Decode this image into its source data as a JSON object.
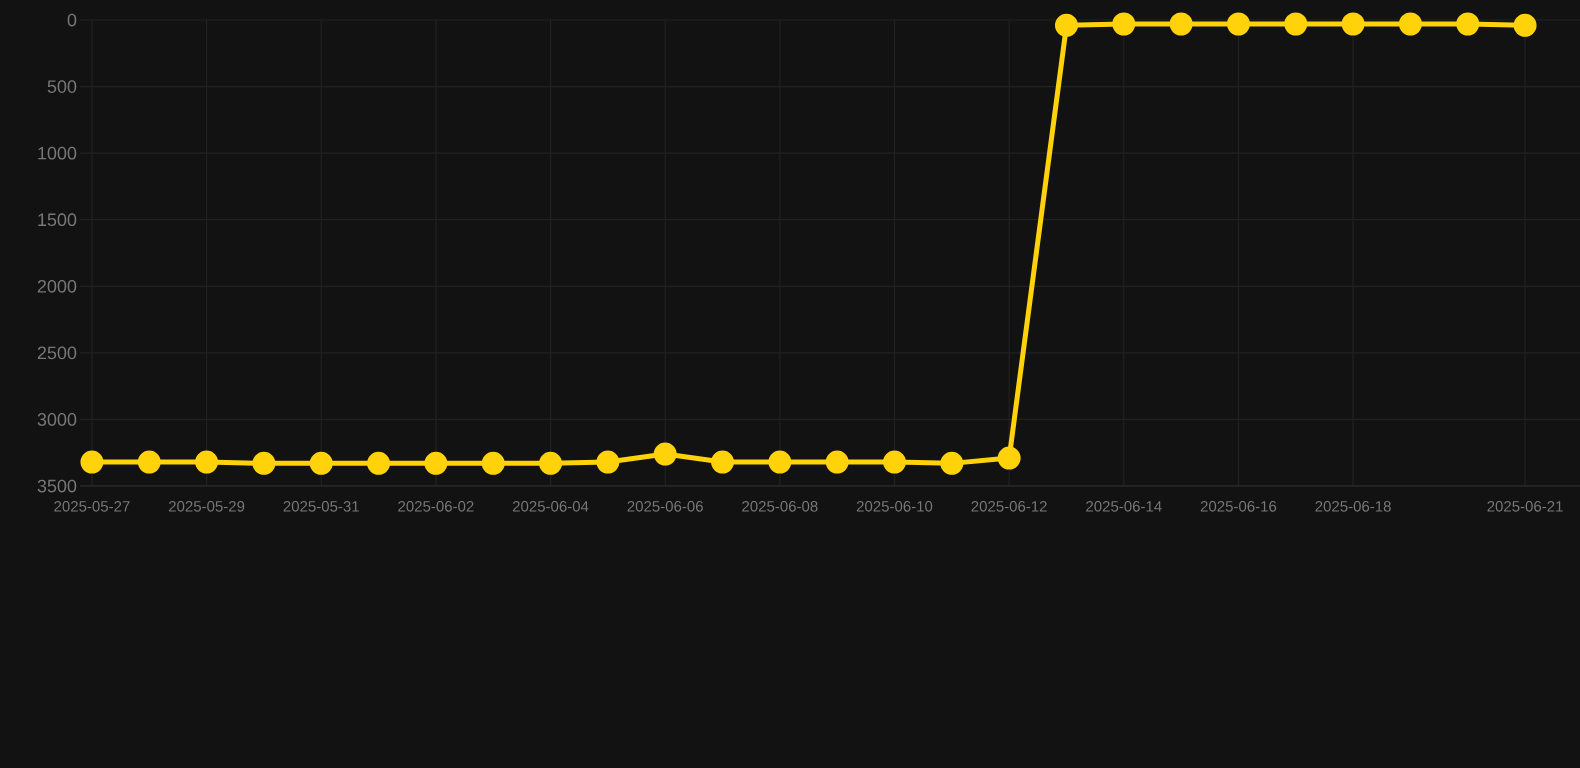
{
  "chart_data": {
    "type": "line",
    "x": [
      "2025-05-27",
      "2025-05-28",
      "2025-05-29",
      "2025-05-30",
      "2025-05-31",
      "2025-06-01",
      "2025-06-02",
      "2025-06-03",
      "2025-06-04",
      "2025-06-05",
      "2025-06-06",
      "2025-06-07",
      "2025-06-08",
      "2025-06-09",
      "2025-06-10",
      "2025-06-11",
      "2025-06-12",
      "2025-06-13",
      "2025-06-14",
      "2025-06-15",
      "2025-06-16",
      "2025-06-17",
      "2025-06-18",
      "2025-06-19",
      "2025-06-20",
      "2025-06-21"
    ],
    "series": [
      {
        "color": "#ffd20a",
        "values": [
          3320,
          3320,
          3320,
          3330,
          3330,
          3330,
          3330,
          3330,
          3330,
          3320,
          3260,
          3320,
          3320,
          3320,
          3320,
          3330,
          3290,
          40,
          30,
          30,
          30,
          30,
          30,
          30,
          30,
          40
        ]
      }
    ],
    "xlim": [
      "2025-05-26T19:00",
      "2025-06-21T23:00"
    ],
    "xticks": [
      "2025-05-27",
      "2025-05-29",
      "2025-05-31",
      "2025-06-02",
      "2025-06-04",
      "2025-06-06",
      "2025-06-08",
      "2025-06-10",
      "2025-06-12",
      "2025-06-14",
      "2025-06-16",
      "2025-06-18",
      "2025-06-21"
    ],
    "ylim": [
      3500,
      0
    ],
    "yticks": [
      0,
      500,
      1000,
      1500,
      2000,
      2500,
      3000,
      3500
    ],
    "grid": true,
    "marker": "circle",
    "line_style": "solid"
  }
}
